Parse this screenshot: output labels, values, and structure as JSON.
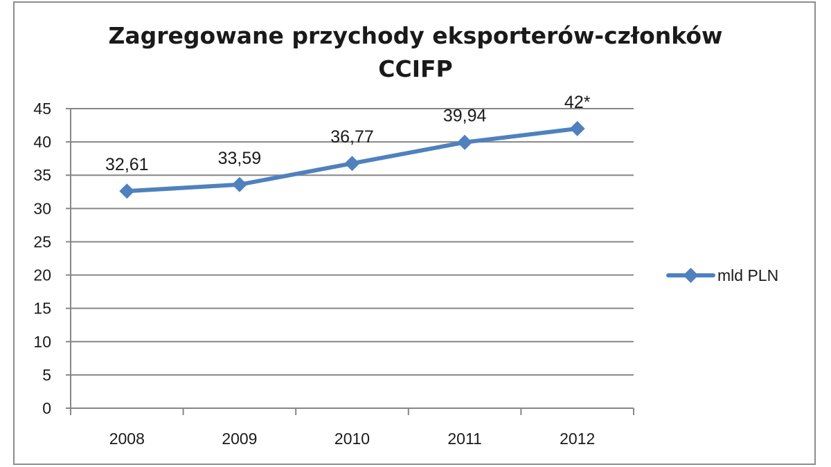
{
  "chart_data": {
    "type": "line",
    "title": "Zagregowane przychody eksporterów-członków CCIFP",
    "title_lines": [
      "Zagregowane przychody eksporterów-członków",
      "CCIFP"
    ],
    "categories": [
      "2008",
      "2009",
      "2010",
      "2011",
      "2012"
    ],
    "series": [
      {
        "name": "mld PLN",
        "values": [
          32.61,
          33.59,
          36.77,
          39.94,
          42
        ],
        "data_labels": [
          "32,61",
          "33,59",
          "36,77",
          "39,94",
          "42*"
        ],
        "color": "#4f81bd",
        "marker": "diamond"
      }
    ],
    "xlabel": "",
    "ylabel": "",
    "ylim": [
      0,
      45
    ],
    "yticks": [
      0,
      5,
      10,
      15,
      20,
      25,
      30,
      35,
      40,
      45
    ],
    "grid": true,
    "legend_position": "right"
  }
}
